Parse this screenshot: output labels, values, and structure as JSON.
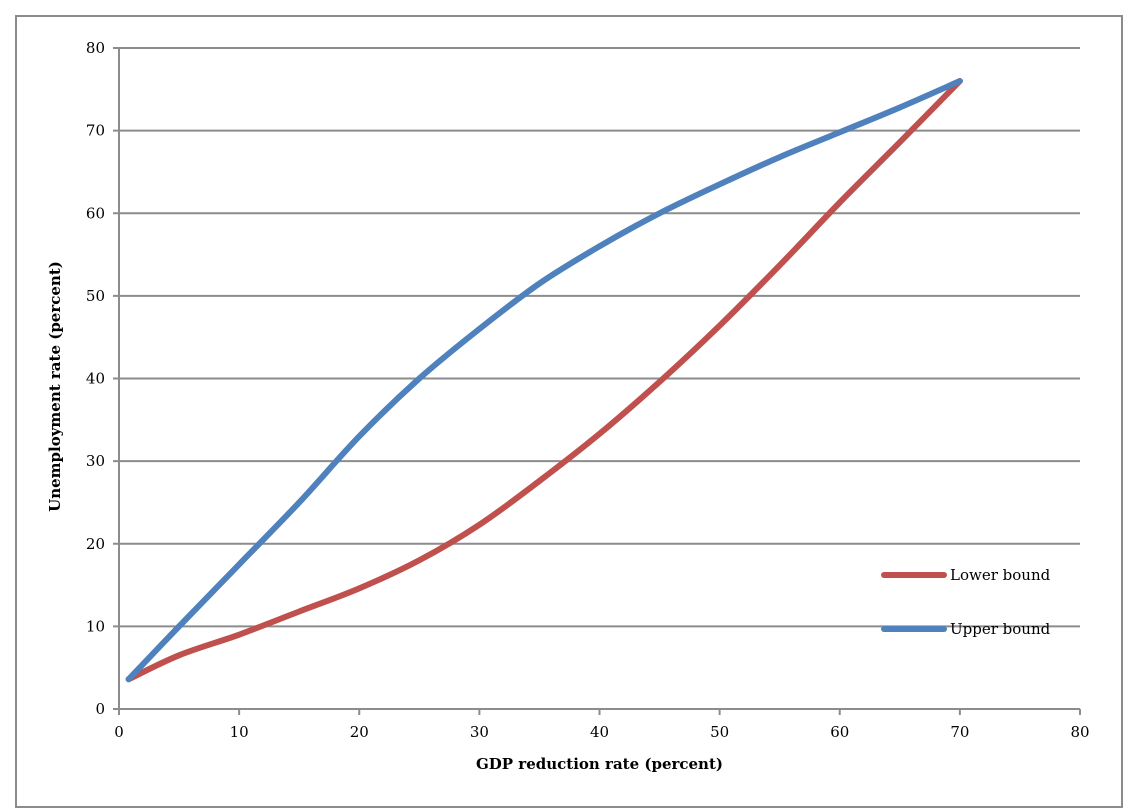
{
  "chart_data": {
    "type": "line",
    "title": "",
    "xlabel": "GDP reduction rate (percent)",
    "ylabel": "Unemployment rate (percent)",
    "xlim": [
      0,
      80
    ],
    "ylim": [
      0,
      80
    ],
    "xticks": [
      0,
      10,
      20,
      30,
      40,
      50,
      60,
      70,
      80
    ],
    "yticks": [
      0,
      10,
      20,
      30,
      40,
      50,
      60,
      70,
      80
    ],
    "grid": "horizontal",
    "legend_position": "right",
    "series": [
      {
        "name": "Lower bound",
        "color": "#c0504d",
        "x": [
          0.8,
          5,
          10,
          15,
          20,
          25,
          30,
          35,
          40,
          45,
          50,
          55,
          60,
          65,
          70
        ],
        "y": [
          3.6,
          6.5,
          9.0,
          11.8,
          14.6,
          18.0,
          22.3,
          27.6,
          33.3,
          39.6,
          46.4,
          53.7,
          61.3,
          68.6,
          76.0
        ]
      },
      {
        "name": "Upper bound",
        "color": "#4f81bd",
        "x": [
          0.8,
          5,
          10,
          15,
          20,
          25,
          30,
          35,
          40,
          45,
          50,
          55,
          60,
          65,
          70
        ],
        "y": [
          3.6,
          10.0,
          17.5,
          25.0,
          33.0,
          40.0,
          46.0,
          51.5,
          56.0,
          60.0,
          63.5,
          66.8,
          69.8,
          72.8,
          76.0
        ]
      }
    ]
  }
}
